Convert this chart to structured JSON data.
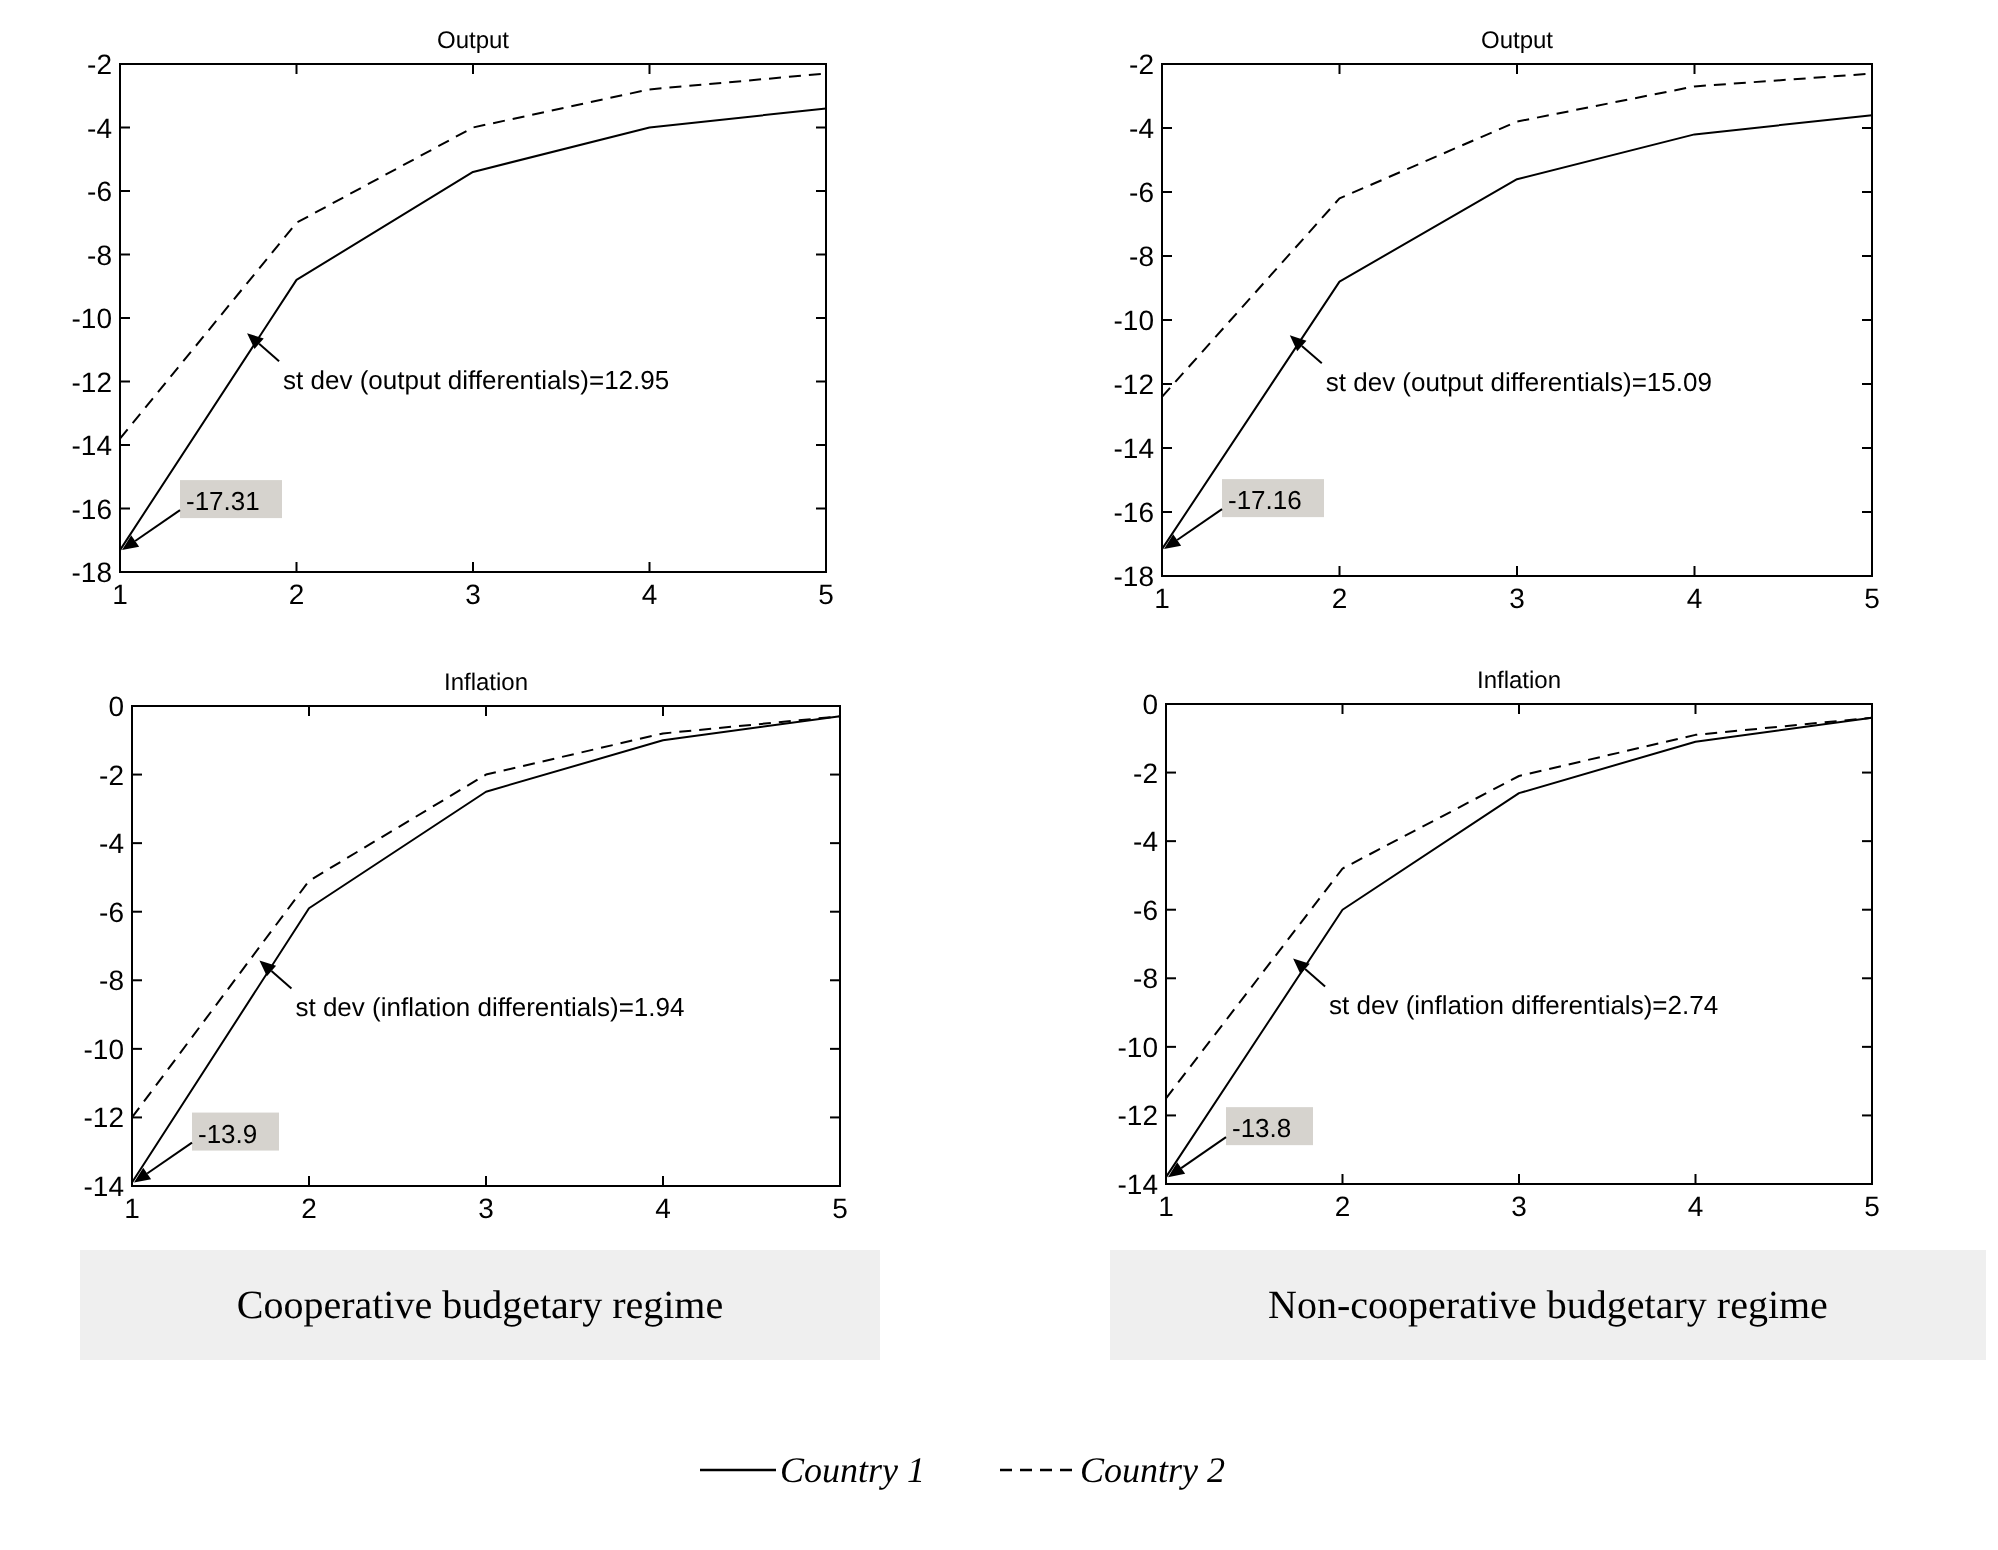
{
  "chart_data": [
    {
      "type": "line",
      "title": "Output",
      "x": [
        1,
        2,
        3,
        4,
        5
      ],
      "xlim": [
        1,
        5
      ],
      "xticks": [
        1,
        2,
        3,
        4,
        5
      ],
      "ylim": [
        -18,
        -2
      ],
      "yticks": [
        -18,
        -16,
        -14,
        -12,
        -10,
        -8,
        -6,
        -4,
        -2
      ],
      "series": [
        {
          "color": "#000000",
          "line_style": "solid",
          "values": [
            -17.31,
            -8.8,
            -5.4,
            -4.0,
            -3.4
          ],
          "value_labels": [
            "-17.31",
            null,
            null,
            null,
            null
          ]
        },
        {
          "color": "#000000",
          "line_style": "dashed",
          "values": [
            -13.8,
            -7.0,
            -4.0,
            -2.8,
            -2.3
          ]
        }
      ],
      "annotations": [
        "st dev (output differentials)=12.95"
      ]
    },
    {
      "type": "line",
      "title": "Output",
      "x": [
        1,
        2,
        3,
        4,
        5
      ],
      "xlim": [
        1,
        5
      ],
      "xticks": [
        1,
        2,
        3,
        4,
        5
      ],
      "ylim": [
        -18,
        -2
      ],
      "yticks": [
        -18,
        -16,
        -14,
        -12,
        -10,
        -8,
        -6,
        -4,
        -2
      ],
      "series": [
        {
          "color": "#000000",
          "line_style": "solid",
          "values": [
            -17.16,
            -8.8,
            -5.6,
            -4.2,
            -3.6
          ],
          "value_labels": [
            "-17.16",
            null,
            null,
            null,
            null
          ]
        },
        {
          "color": "#000000",
          "line_style": "dashed",
          "values": [
            -12.4,
            -6.2,
            -3.8,
            -2.7,
            -2.3
          ]
        }
      ],
      "annotations": [
        "st dev (output differentials)=15.09"
      ]
    },
    {
      "type": "line",
      "title": "Inflation",
      "x": [
        1,
        2,
        3,
        4,
        5
      ],
      "xlim": [
        1,
        5
      ],
      "xticks": [
        1,
        2,
        3,
        4,
        5
      ],
      "ylim": [
        -14,
        0
      ],
      "yticks": [
        -14,
        -12,
        -10,
        -8,
        -6,
        -4,
        -2,
        0
      ],
      "series": [
        {
          "color": "#000000",
          "line_style": "solid",
          "values": [
            -13.9,
            -5.9,
            -2.5,
            -1.0,
            -0.3
          ],
          "value_labels": [
            "-13.9",
            null,
            null,
            null,
            null
          ]
        },
        {
          "color": "#000000",
          "line_style": "dashed",
          "values": [
            -12.0,
            -5.1,
            -2.0,
            -0.8,
            -0.3
          ]
        }
      ],
      "annotations": [
        "st dev (inflation differentials)=1.94",
        "Cooperative budgetary regime"
      ]
    },
    {
      "type": "line",
      "title": "Inflation",
      "x": [
        1,
        2,
        3,
        4,
        5
      ],
      "xlim": [
        1,
        5
      ],
      "xticks": [
        1,
        2,
        3,
        4,
        5
      ],
      "ylim": [
        -14,
        0
      ],
      "yticks": [
        -14,
        -12,
        -10,
        -8,
        -6,
        -4,
        -2,
        0
      ],
      "legend": "bottom",
      "series": [
        {
          "name": "Country 1",
          "color": "#000000",
          "line_style": "solid",
          "values": [
            -13.8,
            -6.0,
            -2.6,
            -1.1,
            -0.4
          ],
          "value_labels": [
            "-13.8",
            null,
            null,
            null,
            null
          ]
        },
        {
          "name": "Country 2",
          "color": "#000000",
          "line_style": "dashed",
          "values": [
            -11.5,
            -4.8,
            -2.1,
            -0.9,
            -0.4
          ]
        }
      ],
      "annotations": [
        "st dev (inflation differentials)=2.74",
        "Non-cooperative budgetary regime"
      ]
    }
  ]
}
